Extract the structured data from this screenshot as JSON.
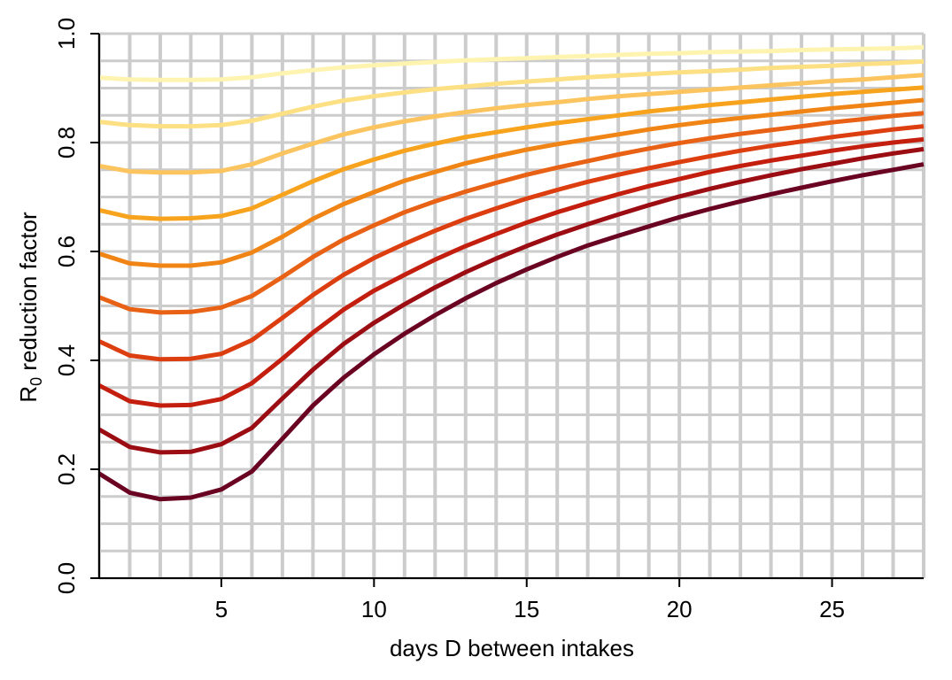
{
  "chart_data": {
    "type": "line",
    "title": "",
    "xlabel": "days D between intakes",
    "ylabel": "R",
    "ylabel_subscript": "0",
    "ylabel_rest": " reduction factor",
    "xlim": [
      1,
      28
    ],
    "ylim": [
      0,
      1
    ],
    "xticks": [
      5,
      10,
      15,
      20,
      25
    ],
    "xtick_labels": [
      "5",
      "10",
      "15",
      "20",
      "25"
    ],
    "yticks": [
      0,
      0.2,
      0.4,
      0.6,
      0.8,
      1.0
    ],
    "ytick_labels": [
      "0.0",
      "0.2",
      "0.4",
      "0.6",
      "0.8",
      "1.0"
    ],
    "grid": true,
    "grid_color": "#cccccc",
    "x": [
      1,
      2,
      3,
      4,
      5,
      6,
      7,
      8,
      9,
      10,
      11,
      12,
      13,
      14,
      15,
      16,
      17,
      18,
      19,
      20,
      21,
      22,
      23,
      24,
      25,
      26,
      27,
      28
    ],
    "series": [
      {
        "color": "#fef4b0",
        "values": [
          0.919,
          0.916,
          0.915,
          0.915,
          0.916,
          0.92,
          0.927,
          0.933,
          0.938,
          0.942,
          0.945,
          0.948,
          0.951,
          0.953,
          0.955,
          0.957,
          0.959,
          0.961,
          0.963,
          0.964,
          0.966,
          0.967,
          0.968,
          0.97,
          0.971,
          0.972,
          0.973,
          0.975
        ]
      },
      {
        "color": "#fce083",
        "values": [
          0.838,
          0.832,
          0.83,
          0.83,
          0.832,
          0.84,
          0.853,
          0.866,
          0.877,
          0.885,
          0.892,
          0.898,
          0.903,
          0.908,
          0.912,
          0.916,
          0.92,
          0.923,
          0.926,
          0.929,
          0.931,
          0.934,
          0.937,
          0.939,
          0.941,
          0.944,
          0.946,
          0.949
        ]
      },
      {
        "color": "#fbc45e",
        "values": [
          0.757,
          0.747,
          0.745,
          0.745,
          0.748,
          0.76,
          0.78,
          0.798,
          0.815,
          0.828,
          0.839,
          0.848,
          0.856,
          0.863,
          0.869,
          0.874,
          0.88,
          0.885,
          0.889,
          0.893,
          0.897,
          0.901,
          0.905,
          0.909,
          0.913,
          0.916,
          0.92,
          0.924
        ]
      },
      {
        "color": "#f7a31d",
        "values": [
          0.676,
          0.663,
          0.66,
          0.661,
          0.665,
          0.679,
          0.704,
          0.729,
          0.751,
          0.769,
          0.785,
          0.798,
          0.81,
          0.819,
          0.828,
          0.836,
          0.843,
          0.85,
          0.857,
          0.863,
          0.869,
          0.874,
          0.879,
          0.884,
          0.889,
          0.893,
          0.897,
          0.901
        ]
      },
      {
        "color": "#f08516",
        "values": [
          0.596,
          0.578,
          0.574,
          0.574,
          0.58,
          0.598,
          0.627,
          0.66,
          0.687,
          0.709,
          0.73,
          0.746,
          0.762,
          0.775,
          0.787,
          0.797,
          0.806,
          0.815,
          0.824,
          0.832,
          0.839,
          0.845,
          0.851,
          0.857,
          0.863,
          0.868,
          0.873,
          0.878
        ]
      },
      {
        "color": "#e86114",
        "values": [
          0.516,
          0.494,
          0.488,
          0.489,
          0.497,
          0.518,
          0.553,
          0.59,
          0.622,
          0.648,
          0.672,
          0.692,
          0.71,
          0.726,
          0.741,
          0.754,
          0.766,
          0.778,
          0.789,
          0.799,
          0.808,
          0.816,
          0.823,
          0.83,
          0.837,
          0.843,
          0.849,
          0.854
        ]
      },
      {
        "color": "#dd3e10",
        "values": [
          0.435,
          0.409,
          0.402,
          0.403,
          0.412,
          0.437,
          0.478,
          0.52,
          0.557,
          0.588,
          0.614,
          0.638,
          0.66,
          0.679,
          0.697,
          0.713,
          0.728,
          0.741,
          0.753,
          0.764,
          0.775,
          0.785,
          0.794,
          0.802,
          0.81,
          0.817,
          0.824,
          0.83
        ]
      },
      {
        "color": "#c41e0f",
        "values": [
          0.354,
          0.325,
          0.317,
          0.318,
          0.329,
          0.358,
          0.403,
          0.451,
          0.493,
          0.528,
          0.557,
          0.585,
          0.61,
          0.632,
          0.653,
          0.672,
          0.689,
          0.705,
          0.72,
          0.733,
          0.746,
          0.757,
          0.767,
          0.776,
          0.785,
          0.793,
          0.8,
          0.806
        ]
      },
      {
        "color": "#9b0d12",
        "values": [
          0.273,
          0.241,
          0.231,
          0.232,
          0.246,
          0.276,
          0.33,
          0.383,
          0.43,
          0.469,
          0.503,
          0.534,
          0.562,
          0.587,
          0.61,
          0.631,
          0.65,
          0.668,
          0.685,
          0.701,
          0.715,
          0.728,
          0.74,
          0.751,
          0.761,
          0.771,
          0.78,
          0.788
        ]
      },
      {
        "color": "#6a0322",
        "values": [
          0.192,
          0.157,
          0.145,
          0.148,
          0.163,
          0.196,
          0.256,
          0.317,
          0.368,
          0.411,
          0.449,
          0.483,
          0.514,
          0.542,
          0.567,
          0.59,
          0.611,
          0.629,
          0.646,
          0.663,
          0.678,
          0.692,
          0.705,
          0.717,
          0.729,
          0.74,
          0.75,
          0.76
        ]
      }
    ]
  }
}
